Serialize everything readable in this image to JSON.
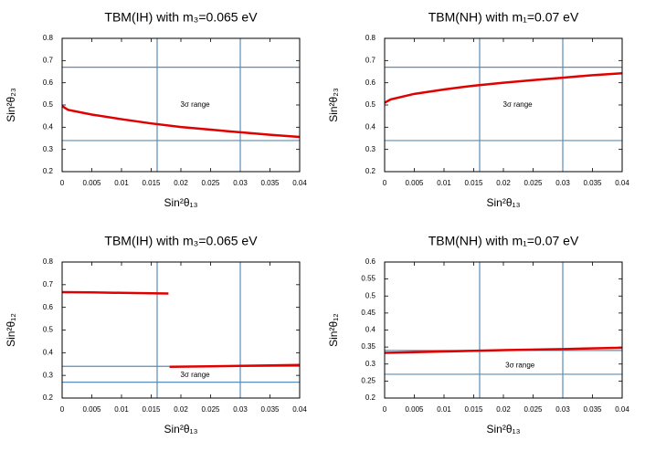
{
  "chart_data": [
    {
      "type": "line",
      "title": "TBM(IH) with m₃=0.065 eV",
      "xlabel": "Sin²θ₁₃",
      "ylabel": "Sin²θ₂₃",
      "annotation": "3σ range",
      "x": [
        0,
        0.001,
        0.005,
        0.01,
        0.015,
        0.02,
        0.025,
        0.03,
        0.035,
        0.04
      ],
      "values": [
        0.495,
        0.478,
        0.457,
        0.436,
        0.417,
        0.401,
        0.389,
        0.377,
        0.366,
        0.356
      ],
      "color": "#e00000",
      "vlines": [
        0.016,
        0.03
      ],
      "hlines": [
        0.34,
        0.67
      ],
      "line_color": "#5b8db8",
      "xlim": [
        0,
        0.04
      ],
      "xticks": [
        0,
        0.005,
        0.01,
        0.015,
        0.02,
        0.025,
        0.03,
        0.035,
        0.04
      ],
      "ylim": [
        0.2,
        0.8
      ],
      "yticks": [
        0.2,
        0.3,
        0.4,
        0.5,
        0.6,
        0.7,
        0.8
      ]
    },
    {
      "type": "line",
      "title": "TBM(NH) with m₁=0.07 eV",
      "xlabel": "Sin²θ₁₃",
      "ylabel": "Sin²θ₂₃",
      "annotation": "3σ range",
      "x": [
        0,
        0.001,
        0.005,
        0.01,
        0.015,
        0.02,
        0.025,
        0.03,
        0.035,
        0.04
      ],
      "values": [
        0.51,
        0.525,
        0.55,
        0.57,
        0.587,
        0.6,
        0.612,
        0.623,
        0.634,
        0.643
      ],
      "color": "#e00000",
      "vlines": [
        0.016,
        0.03
      ],
      "hlines": [
        0.34,
        0.67
      ],
      "line_color": "#5b8db8",
      "xlim": [
        0,
        0.04
      ],
      "xticks": [
        0,
        0.005,
        0.01,
        0.015,
        0.02,
        0.025,
        0.03,
        0.035,
        0.04
      ],
      "ylim": [
        0.2,
        0.8
      ],
      "yticks": [
        0.2,
        0.3,
        0.4,
        0.5,
        0.6,
        0.7,
        0.8
      ]
    },
    {
      "type": "line",
      "title": "TBM(IH) with m₃=0.065 eV",
      "xlabel": "Sin²θ₁₃",
      "ylabel": "Sin²θ₁₂",
      "annotation": "3σ range",
      "x": [
        0,
        0.005,
        0.01,
        0.015,
        0.0179,
        0.018,
        0.0181,
        0.025,
        0.03,
        0.035,
        0.04
      ],
      "values": [
        0.667,
        0.666,
        0.664,
        0.662,
        0.661,
        null,
        0.338,
        0.34,
        0.342,
        0.344,
        0.346
      ],
      "color": "#e00000",
      "vlines": [
        0.016,
        0.03
      ],
      "hlines": [
        0.27,
        0.34
      ],
      "line_color": "#5b8db8",
      "xlim": [
        0,
        0.04
      ],
      "xticks": [
        0,
        0.005,
        0.01,
        0.015,
        0.02,
        0.025,
        0.03,
        0.035,
        0.04
      ],
      "ylim": [
        0.2,
        0.8
      ],
      "yticks": [
        0.2,
        0.3,
        0.4,
        0.5,
        0.6,
        0.7,
        0.8
      ]
    },
    {
      "type": "line",
      "title": "TBM(NH) with m₁=0.07 eV",
      "xlabel": "Sin²θ₁₃",
      "ylabel": "Sin²θ₁₂",
      "annotation": "3σ range",
      "x": [
        0,
        0.01,
        0.02,
        0.03,
        0.04
      ],
      "values": [
        0.333,
        0.337,
        0.341,
        0.344,
        0.348
      ],
      "color": "#e00000",
      "vlines": [
        0.016,
        0.03
      ],
      "hlines": [
        0.27,
        0.34
      ],
      "line_color": "#5b8db8",
      "xlim": [
        0,
        0.04
      ],
      "xticks": [
        0,
        0.005,
        0.01,
        0.015,
        0.02,
        0.025,
        0.03,
        0.035,
        0.04
      ],
      "ylim": [
        0.2,
        0.6
      ],
      "yticks": [
        0.2,
        0.25,
        0.3,
        0.35,
        0.4,
        0.45,
        0.5,
        0.55,
        0.6
      ]
    }
  ]
}
